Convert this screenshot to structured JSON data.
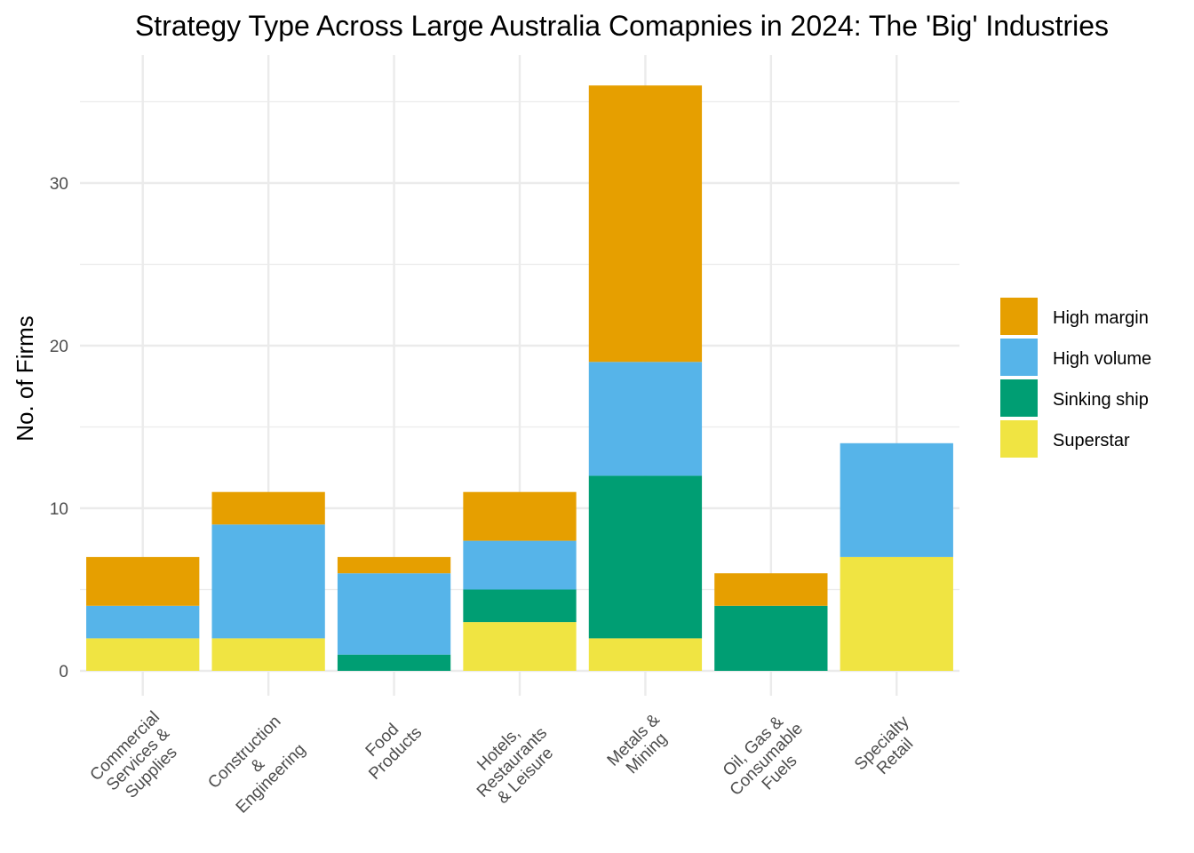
{
  "chart_data": {
    "type": "bar",
    "stacked": true,
    "title": "Strategy Type Across Large Australia Comapnies in 2024: The 'Big' Industries",
    "xlabel": "",
    "ylabel": "No. of Firms",
    "ylim": [
      0,
      36
    ],
    "yticks": [
      0,
      10,
      20,
      30
    ],
    "grid": true,
    "legend_position": "right",
    "categories": [
      [
        "Commercial",
        "Services &",
        "Supplies"
      ],
      [
        "Construction",
        "&",
        "Engineering"
      ],
      [
        "Food",
        "Products"
      ],
      [
        "Hotels,",
        "Restaurants",
        "& Leisure"
      ],
      [
        "Metals &",
        "Mining"
      ],
      [
        "Oil, Gas &",
        "Consumable",
        "Fuels"
      ],
      [
        "Specialty",
        "Retail"
      ]
    ],
    "series": [
      {
        "name": "High margin",
        "color": "#E69F00",
        "values": [
          3,
          2,
          1,
          3,
          17,
          2,
          0
        ]
      },
      {
        "name": "High volume",
        "color": "#56B4E9",
        "values": [
          2,
          7,
          5,
          3,
          7,
          0,
          7
        ]
      },
      {
        "name": "Sinking ship",
        "color": "#009E73",
        "values": [
          0,
          0,
          1,
          2,
          10,
          4,
          0
        ]
      },
      {
        "name": "Superstar",
        "color": "#F0E442",
        "values": [
          2,
          2,
          0,
          3,
          2,
          0,
          7
        ]
      }
    ]
  }
}
